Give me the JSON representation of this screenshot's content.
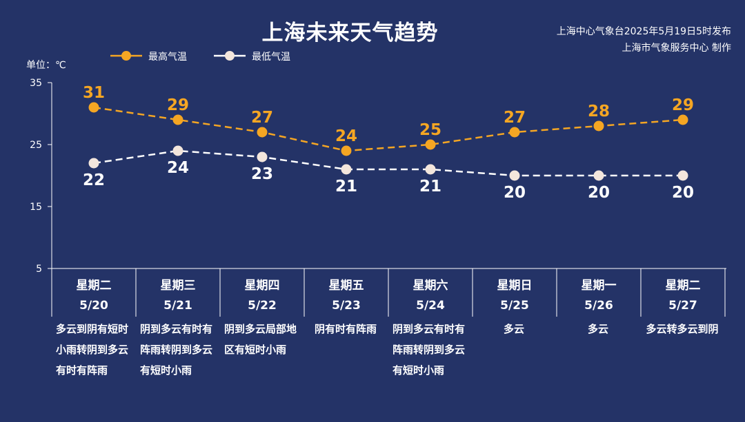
{
  "header": {
    "title": "上海未来天气趋势",
    "source_line1": "上海中心气象台2025年5月19日5时发布",
    "source_line2": "上海市气象服务中心 制作"
  },
  "unit_label": "单位：℃",
  "legend": {
    "high": "最高气温",
    "low": "最低气温"
  },
  "colors": {
    "background": "#243367",
    "high": "#f5a623",
    "low": "#ffffff",
    "low_marker": "#f3e6dc",
    "axis": "#ffffff"
  },
  "chart_data": {
    "type": "line",
    "categories": [
      "5/20",
      "5/21",
      "5/22",
      "5/23",
      "5/24",
      "5/25",
      "5/26",
      "5/27"
    ],
    "series": [
      {
        "name": "最高气温",
        "values": [
          31,
          29,
          27,
          24,
          25,
          27,
          28,
          29
        ]
      },
      {
        "name": "最低气温",
        "values": [
          22,
          24,
          23,
          21,
          21,
          20,
          20,
          20
        ]
      }
    ],
    "yticks": [
      5,
      15,
      25,
      35
    ],
    "ylim": [
      5,
      35
    ],
    "ylabel": "单位：℃",
    "line_style": "dashed",
    "legend_position": "top-left"
  },
  "days": [
    {
      "weekday": "星期二",
      "date": "5/20",
      "desc": "多云到阴有短时小雨转阴到多云有时有阵雨"
    },
    {
      "weekday": "星期三",
      "date": "5/21",
      "desc": "阴到多云有时有阵雨转阴到多云有短时小雨"
    },
    {
      "weekday": "星期四",
      "date": "5/22",
      "desc": "阴到多云局部地区有短时小雨"
    },
    {
      "weekday": "星期五",
      "date": "5/23",
      "desc": "阴有时有阵雨"
    },
    {
      "weekday": "星期六",
      "date": "5/24",
      "desc": "阴到多云有时有阵雨转阴到多云有短时小雨"
    },
    {
      "weekday": "星期日",
      "date": "5/25",
      "desc": "多云"
    },
    {
      "weekday": "星期一",
      "date": "5/26",
      "desc": "多云"
    },
    {
      "weekday": "星期二",
      "date": "5/27",
      "desc": "多云转多云到阴"
    }
  ]
}
